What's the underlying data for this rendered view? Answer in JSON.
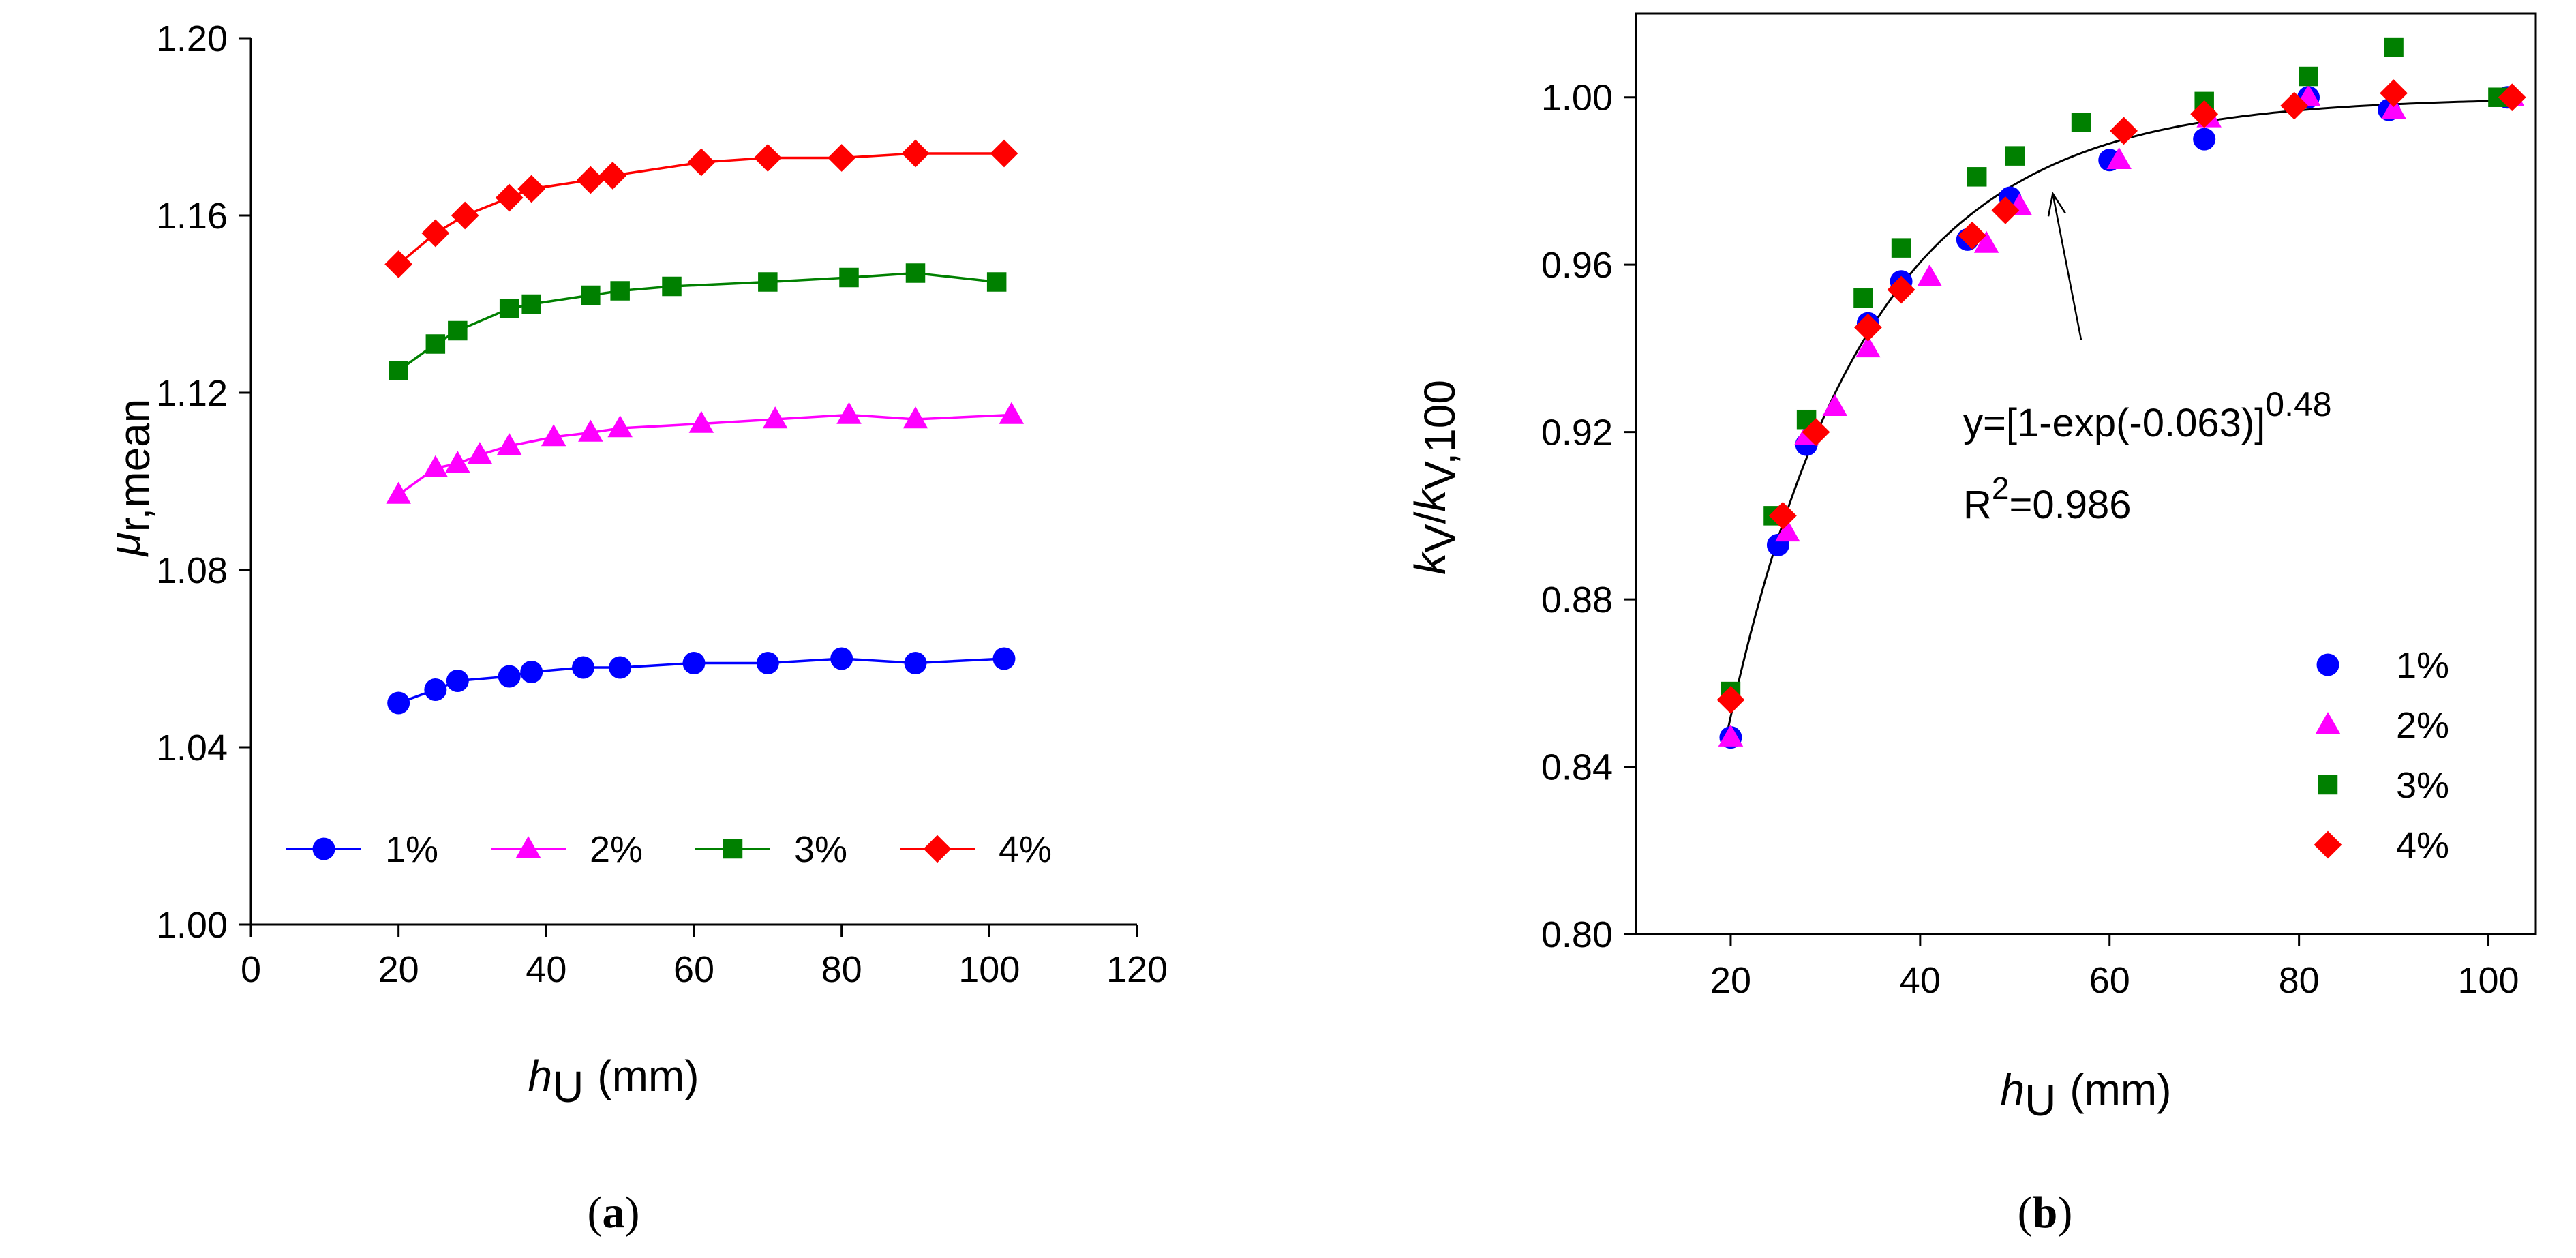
{
  "chart_data": [
    {
      "id": "a",
      "type": "line",
      "panel_label": {
        "open": "(",
        "letter": "a",
        "close": ")"
      },
      "xlabel": {
        "symbol": "h",
        "subscript": "U",
        "unit": "(mm)"
      },
      "ylabel": {
        "symbol": "μ",
        "subscript": "r,mean"
      },
      "xlim": [
        0,
        120
      ],
      "ylim": [
        1.0,
        1.2
      ],
      "xticks": [
        "0",
        "20",
        "40",
        "60",
        "80",
        "100",
        "120"
      ],
      "yticks": [
        "1.00",
        "1.04",
        "1.08",
        "1.12",
        "1.16",
        "1.20"
      ],
      "legend_position": "bottom",
      "series": [
        {
          "name": "1%",
          "color": "#0000ff",
          "marker": "circle",
          "x": [
            20,
            25,
            28,
            35,
            38,
            45,
            50,
            60,
            70,
            80,
            90,
            102
          ],
          "y": [
            1.05,
            1.053,
            1.055,
            1.056,
            1.057,
            1.058,
            1.058,
            1.059,
            1.059,
            1.06,
            1.059,
            1.06
          ]
        },
        {
          "name": "2%",
          "color": "#ff00ff",
          "marker": "triangle",
          "x": [
            20,
            25,
            28,
            31,
            35,
            41,
            46,
            50,
            61,
            71,
            81,
            90,
            103
          ],
          "y": [
            1.097,
            1.103,
            1.104,
            1.106,
            1.108,
            1.11,
            1.111,
            1.112,
            1.113,
            1.114,
            1.115,
            1.114,
            1.115
          ]
        },
        {
          "name": "3%",
          "color": "#008000",
          "marker": "square",
          "x": [
            20,
            25,
            28,
            35,
            38,
            46,
            50,
            57,
            70,
            81,
            90,
            101
          ],
          "y": [
            1.125,
            1.131,
            1.134,
            1.139,
            1.14,
            1.142,
            1.143,
            1.144,
            1.145,
            1.146,
            1.147,
            1.145
          ]
        },
        {
          "name": "4%",
          "color": "#ff0000",
          "marker": "diamond",
          "x": [
            20,
            25,
            29,
            35,
            38,
            46,
            49,
            61,
            70,
            80,
            90,
            102
          ],
          "y": [
            1.149,
            1.156,
            1.16,
            1.164,
            1.166,
            1.168,
            1.169,
            1.172,
            1.173,
            1.173,
            1.174,
            1.174
          ]
        }
      ]
    },
    {
      "id": "b",
      "type": "scatter",
      "panel_label": {
        "open": "(",
        "letter": "b",
        "close": ")"
      },
      "xlabel": {
        "symbol": "h",
        "subscript": "U",
        "unit": "(mm)"
      },
      "ylabel": {
        "symbol1": "k",
        "sub1": "V",
        "slash": "/",
        "symbol2": "k",
        "sub2": "V,100"
      },
      "xlim": [
        10,
        105
      ],
      "ylim": [
        0.8,
        1.02
      ],
      "xticks": [
        "20",
        "40",
        "60",
        "80",
        "100"
      ],
      "yticks": [
        "0.80",
        "0.84",
        "0.88",
        "0.92",
        "0.96",
        "1.00"
      ],
      "legend_position": "bottom-right",
      "fit": {
        "equation_base": "y=[1-exp(-0.063)]",
        "equation_exponent": "0.48",
        "r2_label": "R",
        "r2_power": "2",
        "r2_value": "=0.986",
        "coef": 0.063,
        "power": 0.48,
        "x_from": 19.5,
        "x_to": 102,
        "arrow_tip_x": 54,
        "arrow_tip_y": 0.977,
        "arrow_tail_x": 57,
        "arrow_tail_y": 0.942
      },
      "series": [
        {
          "name": "1%",
          "color": "#0000ff",
          "marker": "circle",
          "x": [
            20,
            25,
            28,
            34.5,
            38,
            45,
            49.5,
            60,
            70,
            81,
            89.5,
            102
          ],
          "y": [
            0.847,
            0.893,
            0.917,
            0.946,
            0.956,
            0.966,
            0.976,
            0.985,
            0.99,
            1.0,
            0.997,
            1.0
          ]
        },
        {
          "name": "2%",
          "color": "#ff00ff",
          "marker": "triangle",
          "x": [
            20,
            26,
            28,
            31,
            34.5,
            41,
            47,
            50.5,
            61,
            70.5,
            81,
            90,
            102.5
          ],
          "y": [
            0.847,
            0.896,
            0.919,
            0.926,
            0.94,
            0.957,
            0.965,
            0.974,
            0.985,
            0.995,
            1.0,
            0.997,
            1.0
          ]
        },
        {
          "name": "3%",
          "color": "#008000",
          "marker": "square",
          "x": [
            20,
            24.5,
            28,
            34,
            38,
            46,
            50,
            57,
            70,
            81,
            90,
            101
          ],
          "y": [
            0.858,
            0.9,
            0.923,
            0.952,
            0.964,
            0.981,
            0.986,
            0.994,
            0.999,
            1.005,
            1.012,
            1.0
          ]
        },
        {
          "name": "4%",
          "color": "#ff0000",
          "marker": "diamond",
          "x": [
            20,
            25.5,
            29,
            34.5,
            38,
            45.5,
            49,
            61.5,
            70,
            79.5,
            90,
            102.5
          ],
          "y": [
            0.856,
            0.9,
            0.92,
            0.945,
            0.954,
            0.967,
            0.973,
            0.992,
            0.996,
            0.998,
            1.001,
            1.0
          ]
        }
      ]
    }
  ]
}
